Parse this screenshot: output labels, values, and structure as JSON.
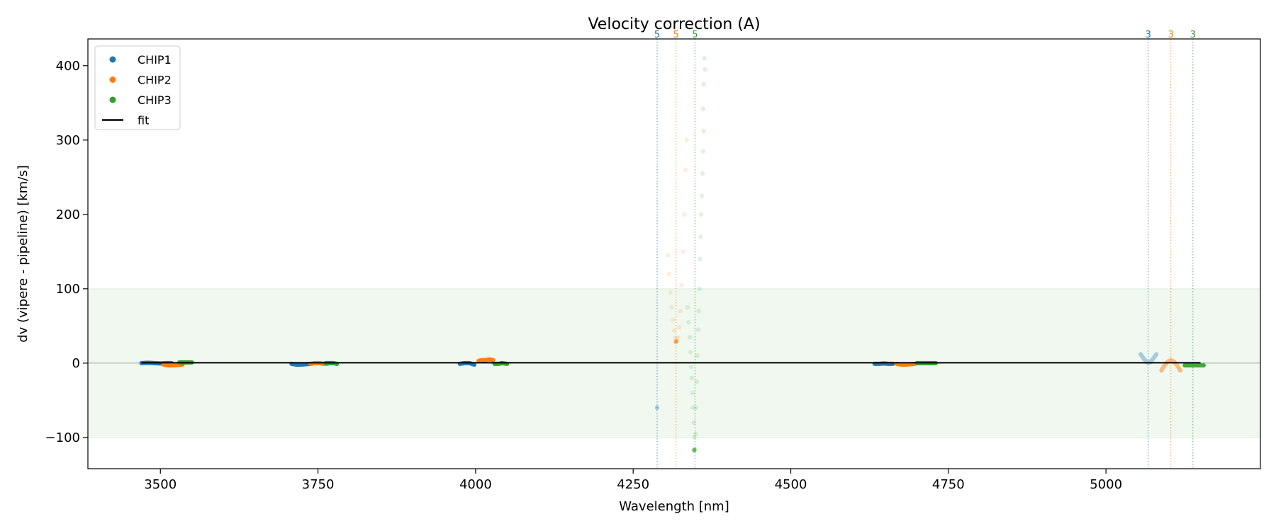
{
  "chart_data": {
    "type": "scatter",
    "title": "Velocity correction (A)",
    "xlabel": "Wavelength [nm]",
    "ylabel": "dv (vipere - pipeline) [km/s]",
    "xlim": [
      3385,
      5245
    ],
    "ylim": [
      -142,
      436
    ],
    "x_ticks": [
      3500,
      3750,
      4000,
      4250,
      4500,
      4750,
      5000
    ],
    "x_tick_labels": [
      "3500",
      "3750",
      "4000",
      "4250",
      "4500",
      "4750",
      "5000"
    ],
    "y_ticks": [
      -100,
      0,
      100,
      200,
      300,
      400
    ],
    "y_tick_labels": [
      "−100",
      "0",
      "100",
      "200",
      "300",
      "400"
    ],
    "tolerance_band": [
      -100,
      100
    ],
    "legend": {
      "location": "upper-left",
      "entries": [
        "CHIP1",
        "CHIP2",
        "CHIP3",
        "fit"
      ]
    },
    "colors": {
      "CHIP1": "#1f77b4",
      "CHIP2": "#ff7f0e",
      "CHIP3": "#2ca02c",
      "fit": "#000000",
      "band": "#2ca02c"
    },
    "fit": {
      "x": [
        3470,
        5150
      ],
      "y": [
        0.5,
        0.5
      ]
    },
    "order_markers": [
      {
        "x": 4288,
        "label": "5",
        "series": "CHIP1"
      },
      {
        "x": 4318,
        "label": "5",
        "series": "CHIP2"
      },
      {
        "x": 4348,
        "label": "5",
        "series": "CHIP3"
      },
      {
        "x": 5067,
        "label": "3",
        "series": "CHIP1"
      },
      {
        "x": 5103,
        "label": "3",
        "series": "CHIP2"
      },
      {
        "x": 5138,
        "label": "3",
        "series": "CHIP3"
      }
    ],
    "series": [
      {
        "name": "CHIP1",
        "groups": [
          {
            "kind": "line",
            "alpha": 1.0,
            "x": [
              3470,
              3480,
              3490,
              3500,
              3510,
              3518
            ],
            "y": [
              0,
              0.5,
              0,
              -0.5,
              0,
              0
            ]
          },
          {
            "kind": "line",
            "alpha": 1.0,
            "x": [
              3708,
              3715,
              3722,
              3730,
              3738
            ],
            "y": [
              -1,
              -2,
              -2,
              -1.5,
              -1
            ]
          },
          {
            "kind": "line",
            "alpha": 1.0,
            "x": [
              3975,
              3982,
              3990,
              3998
            ],
            "y": [
              -1,
              0,
              0,
              -2
            ]
          },
          {
            "kind": "line",
            "alpha": 1.0,
            "x": [
              4633,
              4640,
              4648,
              4655,
              4662
            ],
            "y": [
              -1,
              -1,
              -0.5,
              -1,
              -1
            ]
          },
          {
            "kind": "line",
            "alpha": 0.35,
            "x": [
              5055,
              5060,
              5065,
              5070,
              5075,
              5080
            ],
            "y": [
              12,
              6,
              1,
              1,
              6,
              12
            ]
          },
          {
            "kind": "dots",
            "alpha": 0.35,
            "x": [
              4288
            ],
            "y": [
              -60
            ]
          }
        ]
      },
      {
        "name": "CHIP2",
        "groups": [
          {
            "kind": "line",
            "alpha": 1.0,
            "x": [
              3505,
              3512,
              3520,
              3528,
              3535
            ],
            "y": [
              -2,
              -3,
              -3,
              -2.5,
              -2
            ]
          },
          {
            "kind": "line",
            "alpha": 1.0,
            "x": [
              3738,
              3745,
              3752,
              3760,
              3765
            ],
            "y": [
              -1,
              0,
              0,
              -1,
              -1
            ]
          },
          {
            "kind": "line",
            "alpha": 1.0,
            "x": [
              4005,
              4010,
              4015,
              4022,
              4028
            ],
            "y": [
              3,
              4,
              4,
              5,
              4
            ]
          },
          {
            "kind": "line",
            "alpha": 1.0,
            "x": [
              4668,
              4675,
              4682,
              4690,
              4697
            ],
            "y": [
              -1,
              -2,
              -2,
              -1.5,
              -1
            ]
          },
          {
            "kind": "line",
            "alpha": 0.5,
            "x": [
              5088,
              5093,
              5098,
              5103,
              5108,
              5113,
              5118
            ],
            "y": [
              -10,
              -3,
              2,
              4,
              2,
              -3,
              -10
            ]
          },
          {
            "kind": "dots",
            "alpha": 0.15,
            "x": [
              4305,
              4307,
              4309,
              4311,
              4313,
              4315,
              4317,
              4319,
              4321,
              4323,
              4325,
              4327,
              4329,
              4331,
              4333,
              4335
            ],
            "y": [
              145,
              120,
              95,
              75,
              58,
              44,
              34,
              30,
              34,
              48,
              70,
              105,
              150,
              200,
              260,
              300
            ]
          },
          {
            "kind": "dots",
            "alpha": 0.7,
            "x": [
              4318
            ],
            "y": [
              29
            ]
          }
        ]
      },
      {
        "name": "CHIP3",
        "groups": [
          {
            "kind": "line",
            "alpha": 1.0,
            "x": [
              3530,
              3537,
              3544,
              3550
            ],
            "y": [
              1,
              1,
              1,
              1
            ]
          },
          {
            "kind": "line",
            "alpha": 1.0,
            "x": [
              3762,
              3768,
              3775,
              3780
            ],
            "y": [
              0,
              0,
              0,
              -1
            ]
          },
          {
            "kind": "line",
            "alpha": 1.0,
            "x": [
              4030,
              4036,
              4042,
              4050
            ],
            "y": [
              -1,
              -1,
              0,
              -1
            ]
          },
          {
            "kind": "line",
            "alpha": 1.0,
            "x": [
              4700,
              4710,
              4720,
              4730
            ],
            "y": [
              0,
              0,
              0,
              0
            ]
          },
          {
            "kind": "line",
            "alpha": 0.9,
            "x": [
              5125,
              5132,
              5140,
              5148,
              5155
            ],
            "y": [
              -3,
              -3,
              -3,
              -3,
              -3
            ]
          },
          {
            "kind": "dots",
            "alpha": 0.15,
            "x": [
              4336,
              4338,
              4340,
              4341,
              4342,
              4343,
              4344,
              4345,
              4346,
              4347,
              4348,
              4349,
              4350,
              4351,
              4352,
              4353,
              4354,
              4355,
              4356,
              4357,
              4358,
              4359,
              4360,
              4361,
              4362
            ],
            "y": [
              75,
              55,
              35,
              15,
              -5,
              -20,
              -40,
              -60,
              -80,
              -100,
              -115,
              -95,
              -60,
              -25,
              10,
              45,
              70,
              100,
              140,
              170,
              200,
              225,
              255,
              285,
              312
            ]
          },
          {
            "kind": "dots",
            "alpha": 0.15,
            "x": [
              4361,
              4362,
              4363,
              4364
            ],
            "y": [
              342,
              375,
              410,
              395
            ]
          },
          {
            "kind": "dots",
            "alpha": 0.7,
            "x": [
              4347
            ],
            "y": [
              -117
            ]
          }
        ]
      }
    ]
  }
}
